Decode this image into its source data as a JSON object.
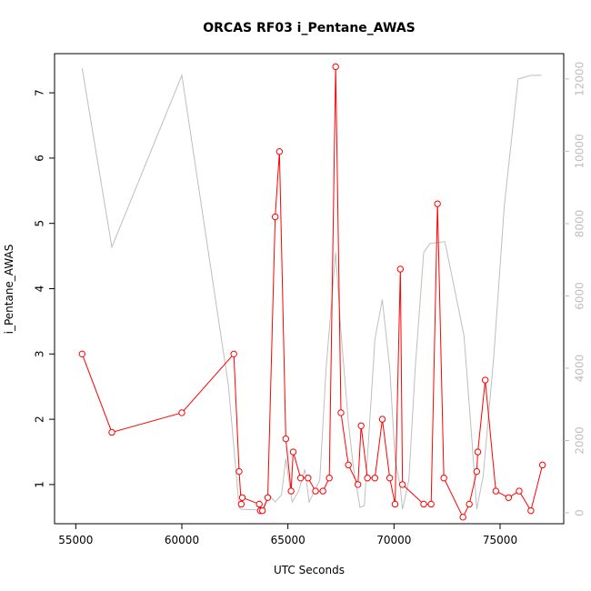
{
  "chart_data": {
    "type": "line",
    "title": "ORCAS RF03 i_Pentane_AWAS",
    "xlabel": "UTC Seconds",
    "ylabel": "i_Pentane_AWAS",
    "xlim": [
      54000,
      78000
    ],
    "ylim": [
      0.4,
      7.6
    ],
    "y2lim": [
      -300,
      12700
    ],
    "x_ticks": [
      55000,
      60000,
      65000,
      70000,
      75000
    ],
    "y_ticks": [
      1,
      2,
      3,
      4,
      5,
      6,
      7
    ],
    "y2_ticks": [
      0,
      2000,
      4000,
      6000,
      8000,
      10000,
      12000
    ],
    "colors": {
      "primary": "#ff0000",
      "secondary": "#bebebe",
      "axis": "#000000"
    },
    "series": [
      {
        "role": "primary",
        "points": [
          [
            55300,
            3.0
          ],
          [
            56700,
            1.8
          ],
          [
            60000,
            2.1
          ],
          [
            62450,
            3.0
          ],
          [
            62700,
            1.2
          ],
          [
            62800,
            0.7
          ],
          [
            62850,
            0.8
          ],
          [
            63650,
            0.7
          ],
          [
            63700,
            0.6
          ],
          [
            63800,
            0.6
          ],
          [
            64050,
            0.8
          ],
          [
            64400,
            5.1
          ],
          [
            64600,
            6.1
          ],
          [
            64900,
            1.7
          ],
          [
            65150,
            0.9
          ],
          [
            65250,
            1.5
          ],
          [
            65600,
            1.1
          ],
          [
            65950,
            1.1
          ],
          [
            66300,
            0.9
          ],
          [
            66650,
            0.9
          ],
          [
            66950,
            1.1
          ],
          [
            67250,
            7.4
          ],
          [
            67500,
            2.1
          ],
          [
            67850,
            1.3
          ],
          [
            68300,
            1.0
          ],
          [
            68450,
            1.9
          ],
          [
            68750,
            1.1
          ],
          [
            69100,
            1.1
          ],
          [
            69450,
            2.0
          ],
          [
            69800,
            1.1
          ],
          [
            70050,
            0.7
          ],
          [
            70300,
            4.3
          ],
          [
            70400,
            1.0
          ],
          [
            71400,
            0.7
          ],
          [
            71750,
            0.7
          ],
          [
            72050,
            5.3
          ],
          [
            72350,
            1.1
          ],
          [
            73250,
            0.5
          ],
          [
            73550,
            0.7
          ],
          [
            73900,
            1.2
          ],
          [
            73950,
            1.5
          ],
          [
            74300,
            2.6
          ],
          [
            74800,
            0.9
          ],
          [
            75400,
            0.8
          ],
          [
            75900,
            0.9
          ],
          [
            76450,
            0.6
          ],
          [
            77000,
            1.3
          ]
        ]
      },
      {
        "role": "secondary",
        "points": [
          [
            55300,
            12300
          ],
          [
            56700,
            7350
          ],
          [
            60000,
            12100
          ],
          [
            62200,
            3500
          ],
          [
            62700,
            150
          ],
          [
            62800,
            100
          ],
          [
            63650,
            80
          ],
          [
            63900,
            150
          ],
          [
            64100,
            500
          ],
          [
            64400,
            300
          ],
          [
            64700,
            500
          ],
          [
            64900,
            1500
          ],
          [
            65200,
            300
          ],
          [
            65500,
            600
          ],
          [
            65800,
            1200
          ],
          [
            66000,
            300
          ],
          [
            66500,
            900
          ],
          [
            66800,
            4000
          ],
          [
            67250,
            7200
          ],
          [
            67500,
            5000
          ],
          [
            67850,
            2500
          ],
          [
            68100,
            1200
          ],
          [
            68400,
            150
          ],
          [
            68600,
            200
          ],
          [
            68800,
            2000
          ],
          [
            69100,
            4800
          ],
          [
            69450,
            5900
          ],
          [
            69800,
            4000
          ],
          [
            70050,
            1500
          ],
          [
            70300,
            700
          ],
          [
            70400,
            100
          ],
          [
            70700,
            900
          ],
          [
            71000,
            4000
          ],
          [
            71400,
            7200
          ],
          [
            71700,
            7450
          ],
          [
            72400,
            7500
          ],
          [
            73300,
            4900
          ],
          [
            73650,
            2200
          ],
          [
            73900,
            100
          ],
          [
            74200,
            1000
          ],
          [
            74700,
            4300
          ],
          [
            75200,
            8500
          ],
          [
            75850,
            12000
          ],
          [
            76450,
            12100
          ],
          [
            76950,
            12100
          ]
        ]
      }
    ]
  }
}
